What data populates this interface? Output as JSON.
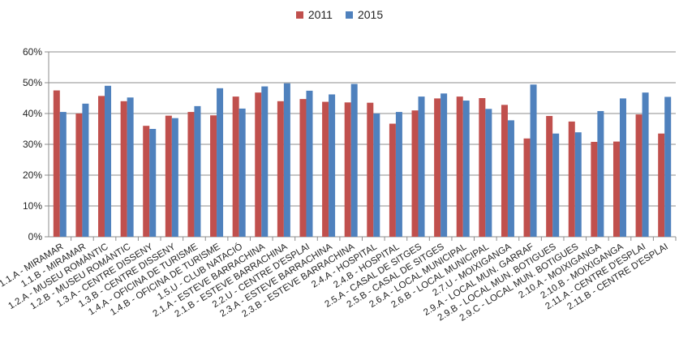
{
  "chart_data": {
    "type": "bar",
    "ylim": [
      0,
      0.6
    ],
    "yticks": [
      "0%",
      "10%",
      "20%",
      "30%",
      "40%",
      "50%",
      "60%"
    ],
    "grid": true,
    "legend_position": "top",
    "categories": [
      "1.1.A - MIRAMAR",
      "1.1.B - MIRAMAR",
      "1.2.A - MUSEU ROMÀNTIC",
      "1.2.B - MUSEU ROMÀNTIC",
      "1.3.A - CENTRE DISSENY",
      "1.3.B - CENTRE DISSENY",
      "1.4.A - OFICINA DE TURISME",
      "1.4.B - OFICINA DE TURISME",
      "1.5.U - CLUB NATACIÓ",
      "2.1.A - ESTEVE BARRACHINA",
      "2.1.B - ESTEVE BARRACHINA",
      "2.2.U - CENTRE D'ESPLAI",
      "2.3.A - ESTEVE BARRACHINA",
      "2.3.B - ESTEVE BARRACHINA",
      "2.4.A - HOSPITAL",
      "2.4.B - HOSPITAL",
      "2.5.A - CASAL DE SITGES",
      "2.5.B - CASAL DE SITGES",
      "2.6.A - LOCAL MUNICIPAL",
      "2.6.B - LOCAL MUNICIPAL",
      "2.7.U - MOIXIGANGA",
      "2.9.A - LOCAL MUN. GARRAF",
      "2.9.B - LOCAL MUN. BOTIGUES",
      "2.9.C - LOCAL MUN. BOTIGUES",
      "2.10.A - MOIXIGANGA",
      "2.10.B - MOIXIGANGA",
      "2.11.A - CENTRE D'ESPLAI",
      "2.11.B - CENTRE D'ESPLAI"
    ],
    "series": [
      {
        "name": "2011",
        "color": "#c0504d",
        "values": [
          0.475,
          0.4,
          0.457,
          0.44,
          0.36,
          0.393,
          0.405,
          0.394,
          0.455,
          0.468,
          0.44,
          0.447,
          0.438,
          0.436,
          0.435,
          0.367,
          0.41,
          0.449,
          0.455,
          0.45,
          0.428,
          0.319,
          0.392,
          0.374,
          0.308,
          0.309,
          0.397,
          0.335
        ]
      },
      {
        "name": "2015",
        "color": "#4f81bd",
        "values": [
          0.405,
          0.432,
          0.49,
          0.452,
          0.35,
          0.385,
          0.424,
          0.482,
          0.416,
          0.488,
          0.498,
          0.474,
          0.462,
          0.496,
          0.4,
          0.405,
          0.455,
          0.465,
          0.442,
          0.415,
          0.378,
          0.494,
          0.335,
          0.339,
          0.408,
          0.449,
          0.468,
          0.454
        ]
      }
    ]
  }
}
